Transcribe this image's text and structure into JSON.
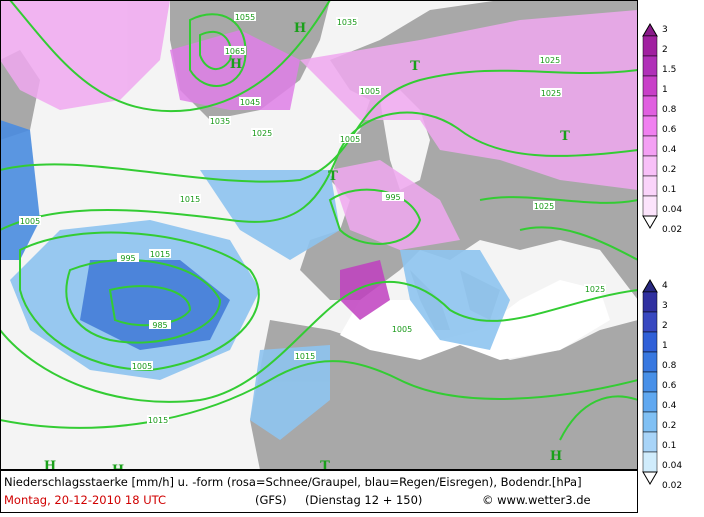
{
  "caption": {
    "line1": "Niederschlagsstaerke [mm/h] u. -form (rosa=Schnee/Graupel, blau=Regen/Eisregen), Bodendr.[hPa]",
    "date": "Montag, 20-12-2010   18 UTC",
    "model": "(GFS)",
    "forecast": "(Dienstag 12 + 150)",
    "copyright": "© www.wetter3.de"
  },
  "legend": {
    "snow": [
      "3",
      "2",
      "1.5",
      "1",
      "0.8",
      "0.6",
      "0.4",
      "0.2",
      "0.1",
      "0.04",
      "0.02"
    ],
    "rain": [
      "4",
      "3",
      "2",
      "1",
      "0.8",
      "0.6",
      "0.4",
      "0.2",
      "0.1",
      "0.04",
      "0.02"
    ]
  },
  "isobars": [
    "1055",
    "1065",
    "1045",
    "1035",
    "1025",
    "1015",
    "1005",
    "1015",
    "1005",
    "995",
    "985",
    "1005",
    "1015",
    "1015",
    "1005",
    "1035",
    "1025",
    "1025",
    "1025",
    "1005",
    "1025",
    "995"
  ],
  "centers": [
    "H",
    "H",
    "T",
    "T",
    "T",
    "H",
    "H",
    "T",
    "H"
  ]
}
